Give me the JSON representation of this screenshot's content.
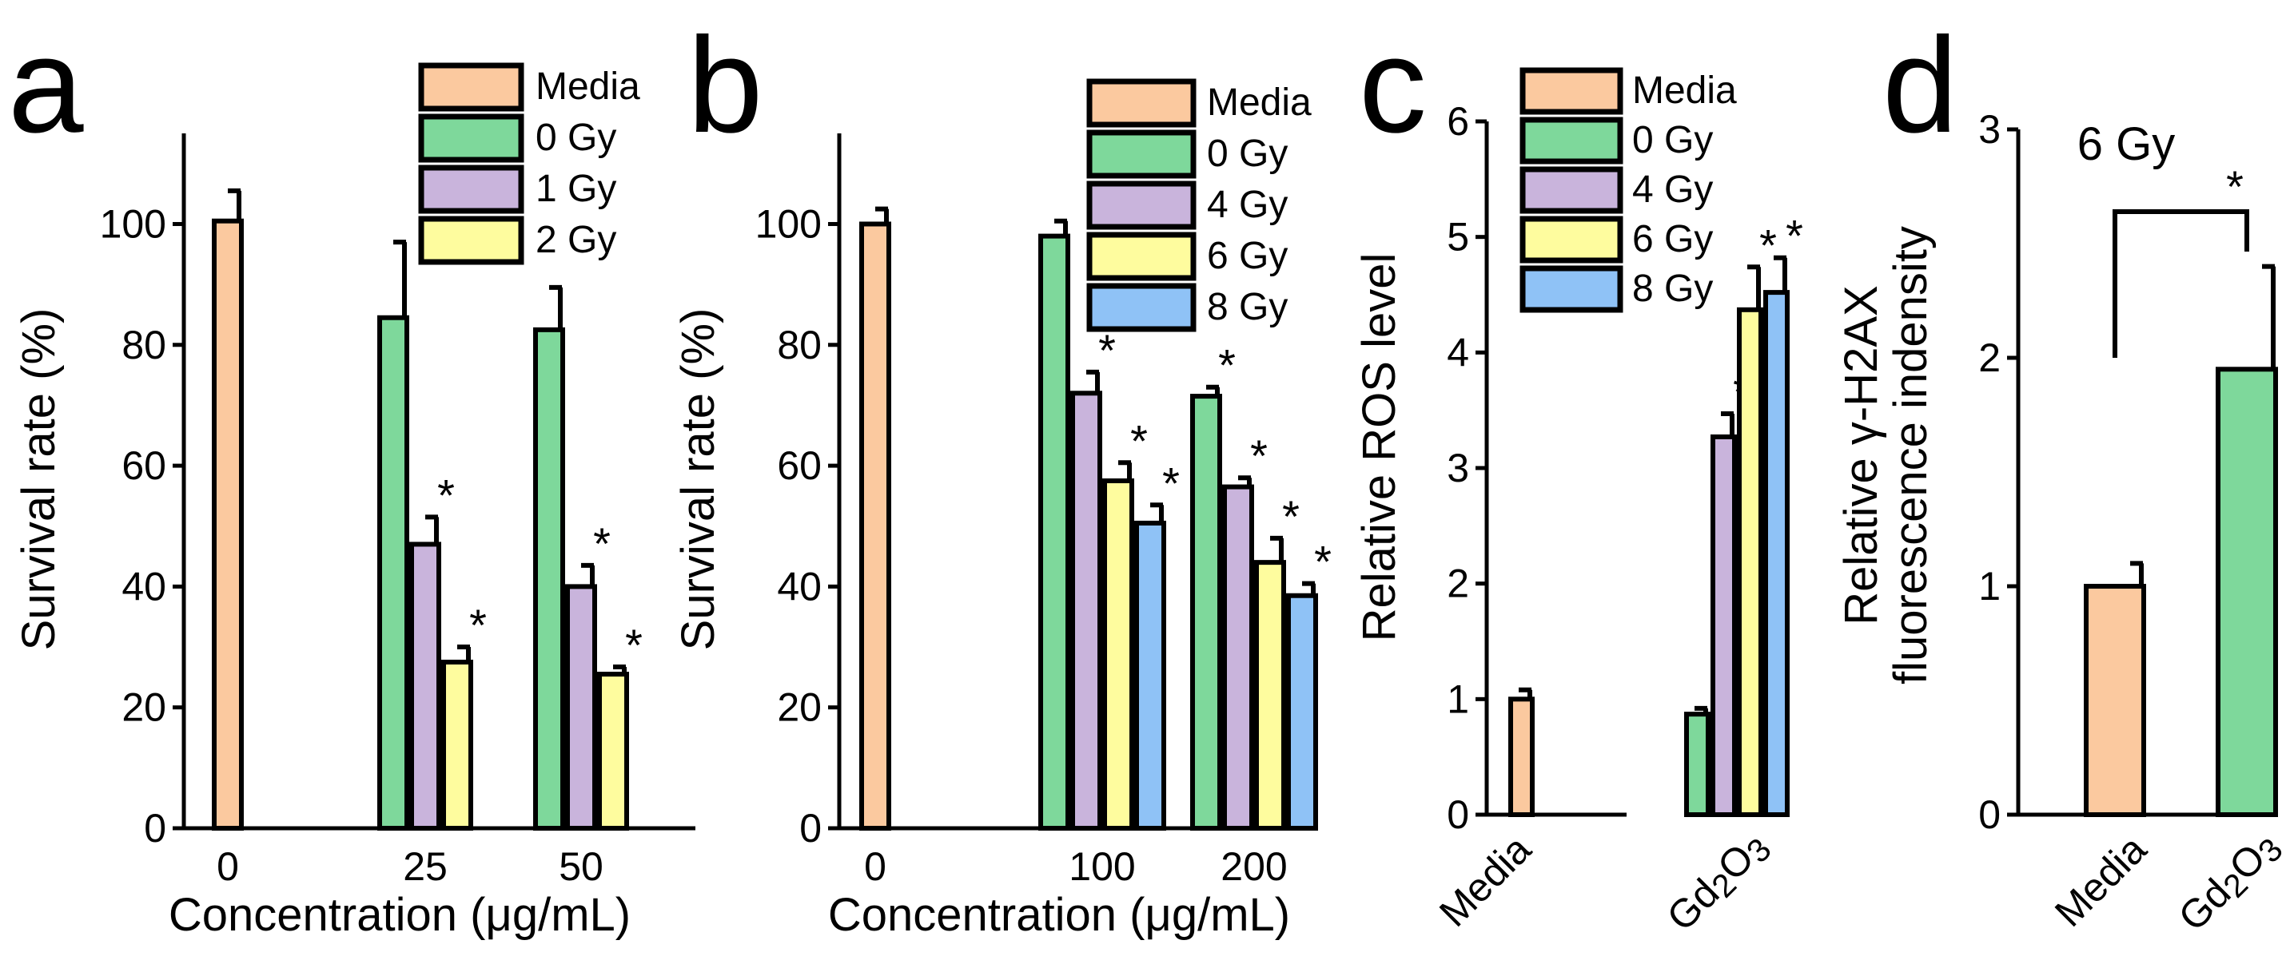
{
  "colors": {
    "Media": "#fbc99f",
    "0 Gy": "#7ed89b",
    "1 Gy": "#c9b4dc",
    "2 Gy": "#fefc9e",
    "4 Gy": "#c9b4dc",
    "6 Gy": "#fefc9e",
    "8 Gy": "#8fc2f6"
  },
  "chart_data": [
    {
      "panel": "a",
      "type": "bar",
      "xlabel": "Concentration (μg/mL)",
      "ylabel": "Survival rate (%)",
      "ylim": [
        0,
        115
      ],
      "yticks": [
        0,
        20,
        40,
        60,
        80,
        100
      ],
      "legend": [
        "Media",
        "0 Gy",
        "1 Gy",
        "2 Gy"
      ],
      "groups": [
        {
          "label": "0",
          "bars": [
            {
              "series": "Media",
              "value": 100.5,
              "error": 5,
              "star": ""
            }
          ]
        },
        {
          "label": "25",
          "bars": [
            {
              "series": "0 Gy",
              "value": 84.5,
              "error": 12.5,
              "star": ""
            },
            {
              "series": "1 Gy",
              "value": 47,
              "error": 4.5,
              "star": "*"
            },
            {
              "series": "2 Gy",
              "value": 27.5,
              "error": 2.5,
              "star": "*"
            }
          ]
        },
        {
          "label": "50",
          "bars": [
            {
              "series": "0 Gy",
              "value": 82.5,
              "error": 7,
              "star": ""
            },
            {
              "series": "1 Gy",
              "value": 40,
              "error": 3.5,
              "star": "*"
            },
            {
              "series": "2 Gy",
              "value": 25.5,
              "error": 1.2,
              "star": "*"
            }
          ]
        }
      ]
    },
    {
      "panel": "b",
      "type": "bar",
      "xlabel": "Concentration (μg/mL)",
      "ylabel": "Survival rate (%)",
      "ylim": [
        0,
        115
      ],
      "yticks": [
        0,
        20,
        40,
        60,
        80,
        100
      ],
      "legend": [
        "Media",
        "0 Gy",
        "4 Gy",
        "6 Gy",
        "8 Gy"
      ],
      "groups": [
        {
          "label": "0",
          "bars": [
            {
              "series": "Media",
              "value": 100,
              "error": 2.5,
              "star": ""
            }
          ]
        },
        {
          "label": "100",
          "bars": [
            {
              "series": "0 Gy",
              "value": 98,
              "error": 2.5,
              "star": ""
            },
            {
              "series": "4 Gy",
              "value": 72,
              "error": 3.5,
              "star": "*"
            },
            {
              "series": "6 Gy",
              "value": 57.5,
              "error": 3,
              "star": "*"
            },
            {
              "series": "8 Gy",
              "value": 50.5,
              "error": 3,
              "star": "*"
            }
          ]
        },
        {
          "label": "200",
          "bars": [
            {
              "series": "0 Gy",
              "value": 71.5,
              "error": 1.5,
              "star": "*"
            },
            {
              "series": "4 Gy",
              "value": 56.5,
              "error": 1.5,
              "star": "*"
            },
            {
              "series": "6 Gy",
              "value": 44,
              "error": 4,
              "star": "*"
            },
            {
              "series": "8 Gy",
              "value": 38.5,
              "error": 2,
              "star": "*"
            }
          ]
        }
      ]
    },
    {
      "panel": "c",
      "type": "bar",
      "xlabel": "",
      "ylabel": "Relative ROS level",
      "ylim": [
        0,
        6
      ],
      "yticks": [
        0,
        1,
        2,
        3,
        4,
        5,
        6
      ],
      "legend": [
        "Media",
        "0 Gy",
        "4 Gy",
        "6 Gy",
        "8 Gy"
      ],
      "groups": [
        {
          "label": "Media",
          "bars": [
            {
              "series": "Media",
              "value": 1.0,
              "error": 0.08,
              "star": ""
            }
          ]
        },
        {
          "label": "Gd2O3",
          "bars": [
            {
              "series": "0 Gy",
              "value": 0.87,
              "error": 0.05,
              "star": ""
            },
            {
              "series": "4 Gy",
              "value": 3.27,
              "error": 0.2,
              "star": "*"
            },
            {
              "series": "6 Gy",
              "value": 4.37,
              "error": 0.37,
              "star": "*"
            },
            {
              "series": "8 Gy",
              "value": 4.52,
              "error": 0.3,
              "star": "*"
            }
          ]
        }
      ]
    },
    {
      "panel": "d",
      "type": "bar",
      "title": "6 Gy",
      "xlabel": "",
      "ylabel": "Relative γ-H2AX fluorescence indensity",
      "ylabel_lines": [
        "Relative γ-H2AX",
        "fluorescence indensity"
      ],
      "ylim": [
        0,
        3
      ],
      "yticks": [
        0,
        1,
        2,
        3
      ],
      "significance": "*",
      "groups": [
        {
          "label": "Media",
          "bars": [
            {
              "series": "Media",
              "value": 1.0,
              "error": 0.1,
              "star": ""
            }
          ]
        },
        {
          "label": "Gd2O3",
          "bars": [
            {
              "series": "0 Gy",
              "value": 1.95,
              "error": 0.45,
              "star": ""
            }
          ]
        }
      ]
    }
  ]
}
